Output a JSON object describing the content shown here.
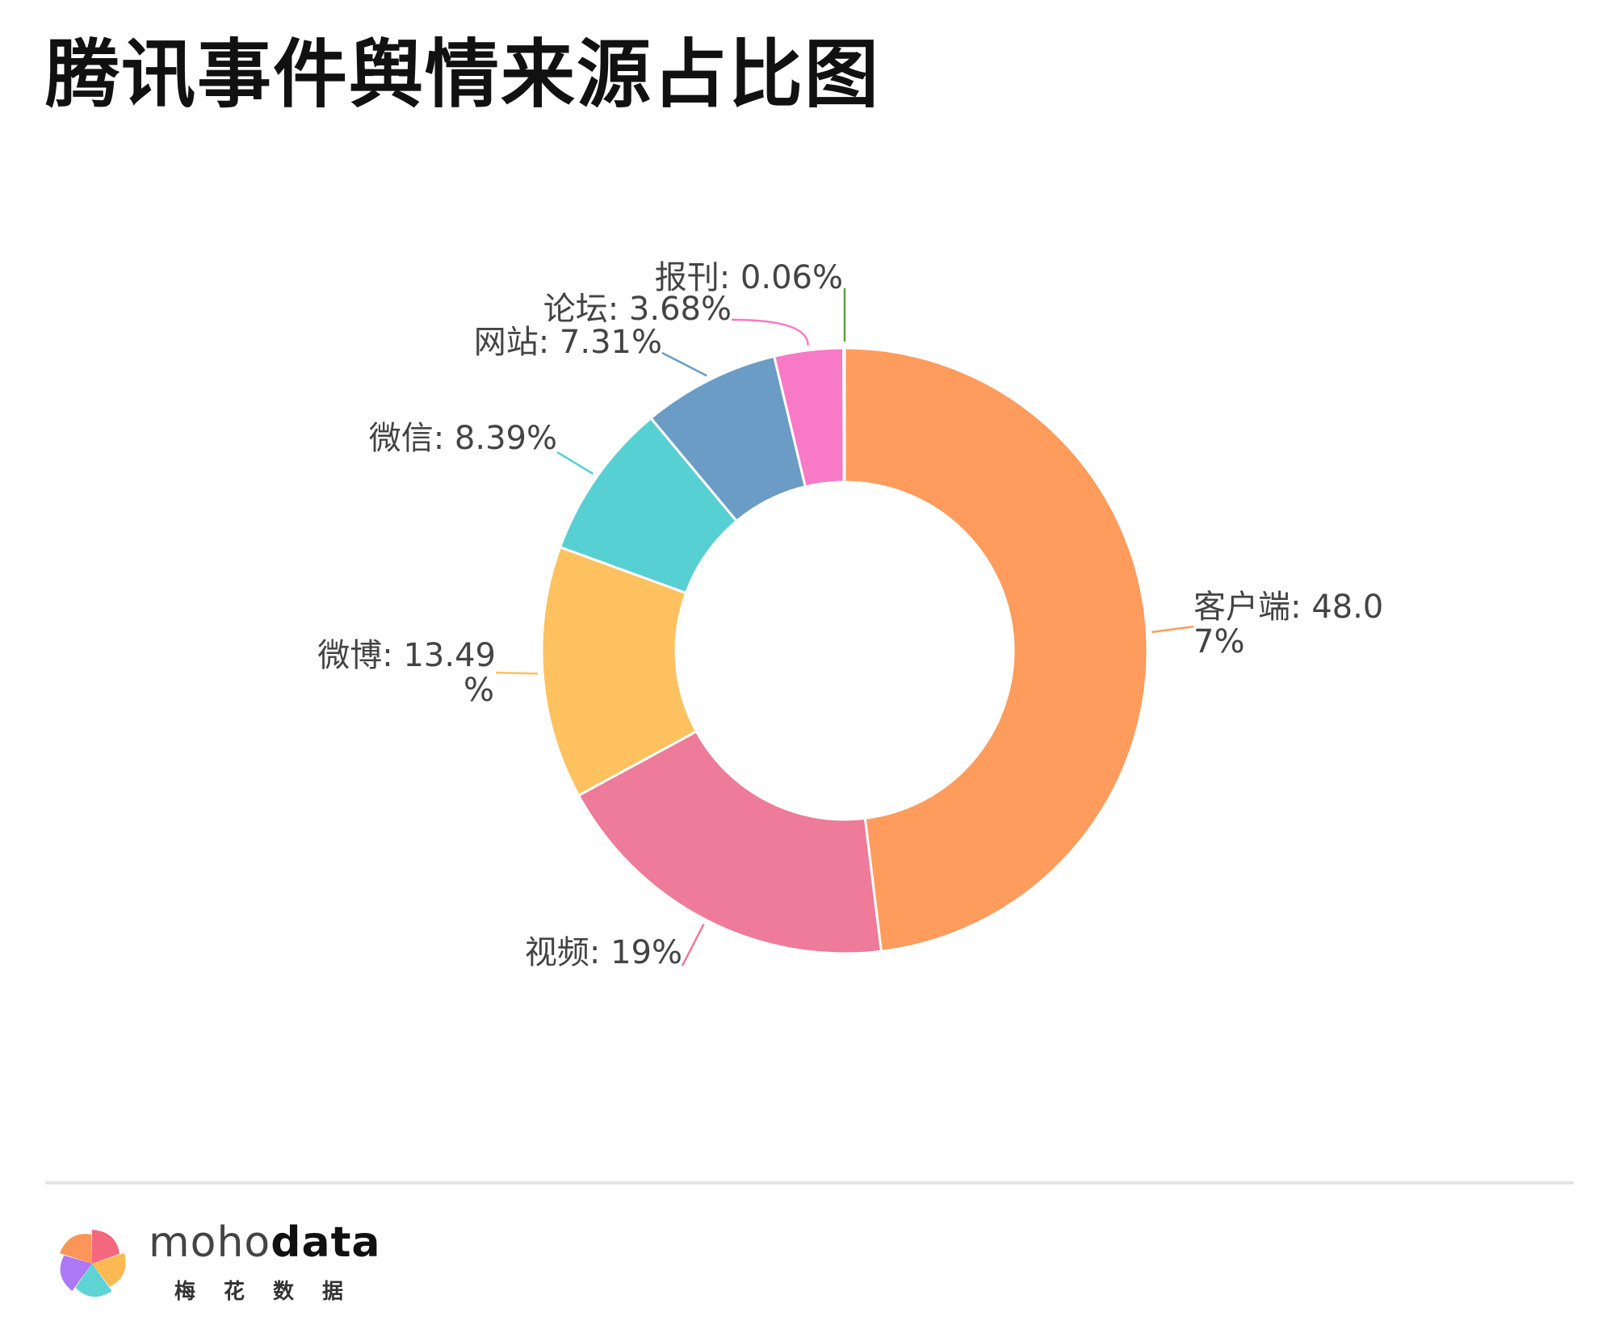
{
  "title": "腾讯事件舆情来源占比图",
  "chart_data": {
    "type": "pie",
    "donut": true,
    "slices": [
      {
        "name": "客户端",
        "value": 48.07,
        "label_line1": "客户端: 48.0",
        "label_line2": "7%",
        "color": "#fe9c5d"
      },
      {
        "name": "视频",
        "value": 19,
        "label_line1": "视频: 19%",
        "label_line2": "",
        "color": "#ed7b99"
      },
      {
        "name": "微博",
        "value": 13.49,
        "label_line1": "微博: 13.49",
        "label_line2": "%",
        "color": "#fec160"
      },
      {
        "name": "微信",
        "value": 8.39,
        "label_line1": "微信: 8.39%",
        "label_line2": "",
        "color": "#57d0d4"
      },
      {
        "name": "网站",
        "value": 7.31,
        "label_line1": "网站: 7.31%",
        "label_line2": "",
        "color": "#6b9cc6"
      },
      {
        "name": "论坛",
        "value": 3.68,
        "label_line1": "论坛: 3.68%",
        "label_line2": "",
        "color": "#f879c6"
      },
      {
        "name": "报刊",
        "value": 0.06,
        "label_line1": "报刊: 0.06%",
        "label_line2": "",
        "color": "#5aa63d"
      }
    ]
  },
  "footer": {
    "brand_light": "moho",
    "brand_bold": "data",
    "brand_sub": "梅花数据",
    "logo_colors": [
      "#f35a72",
      "#fdb342",
      "#4fcfd0",
      "#a66cf4",
      "#fd8c4a"
    ]
  }
}
